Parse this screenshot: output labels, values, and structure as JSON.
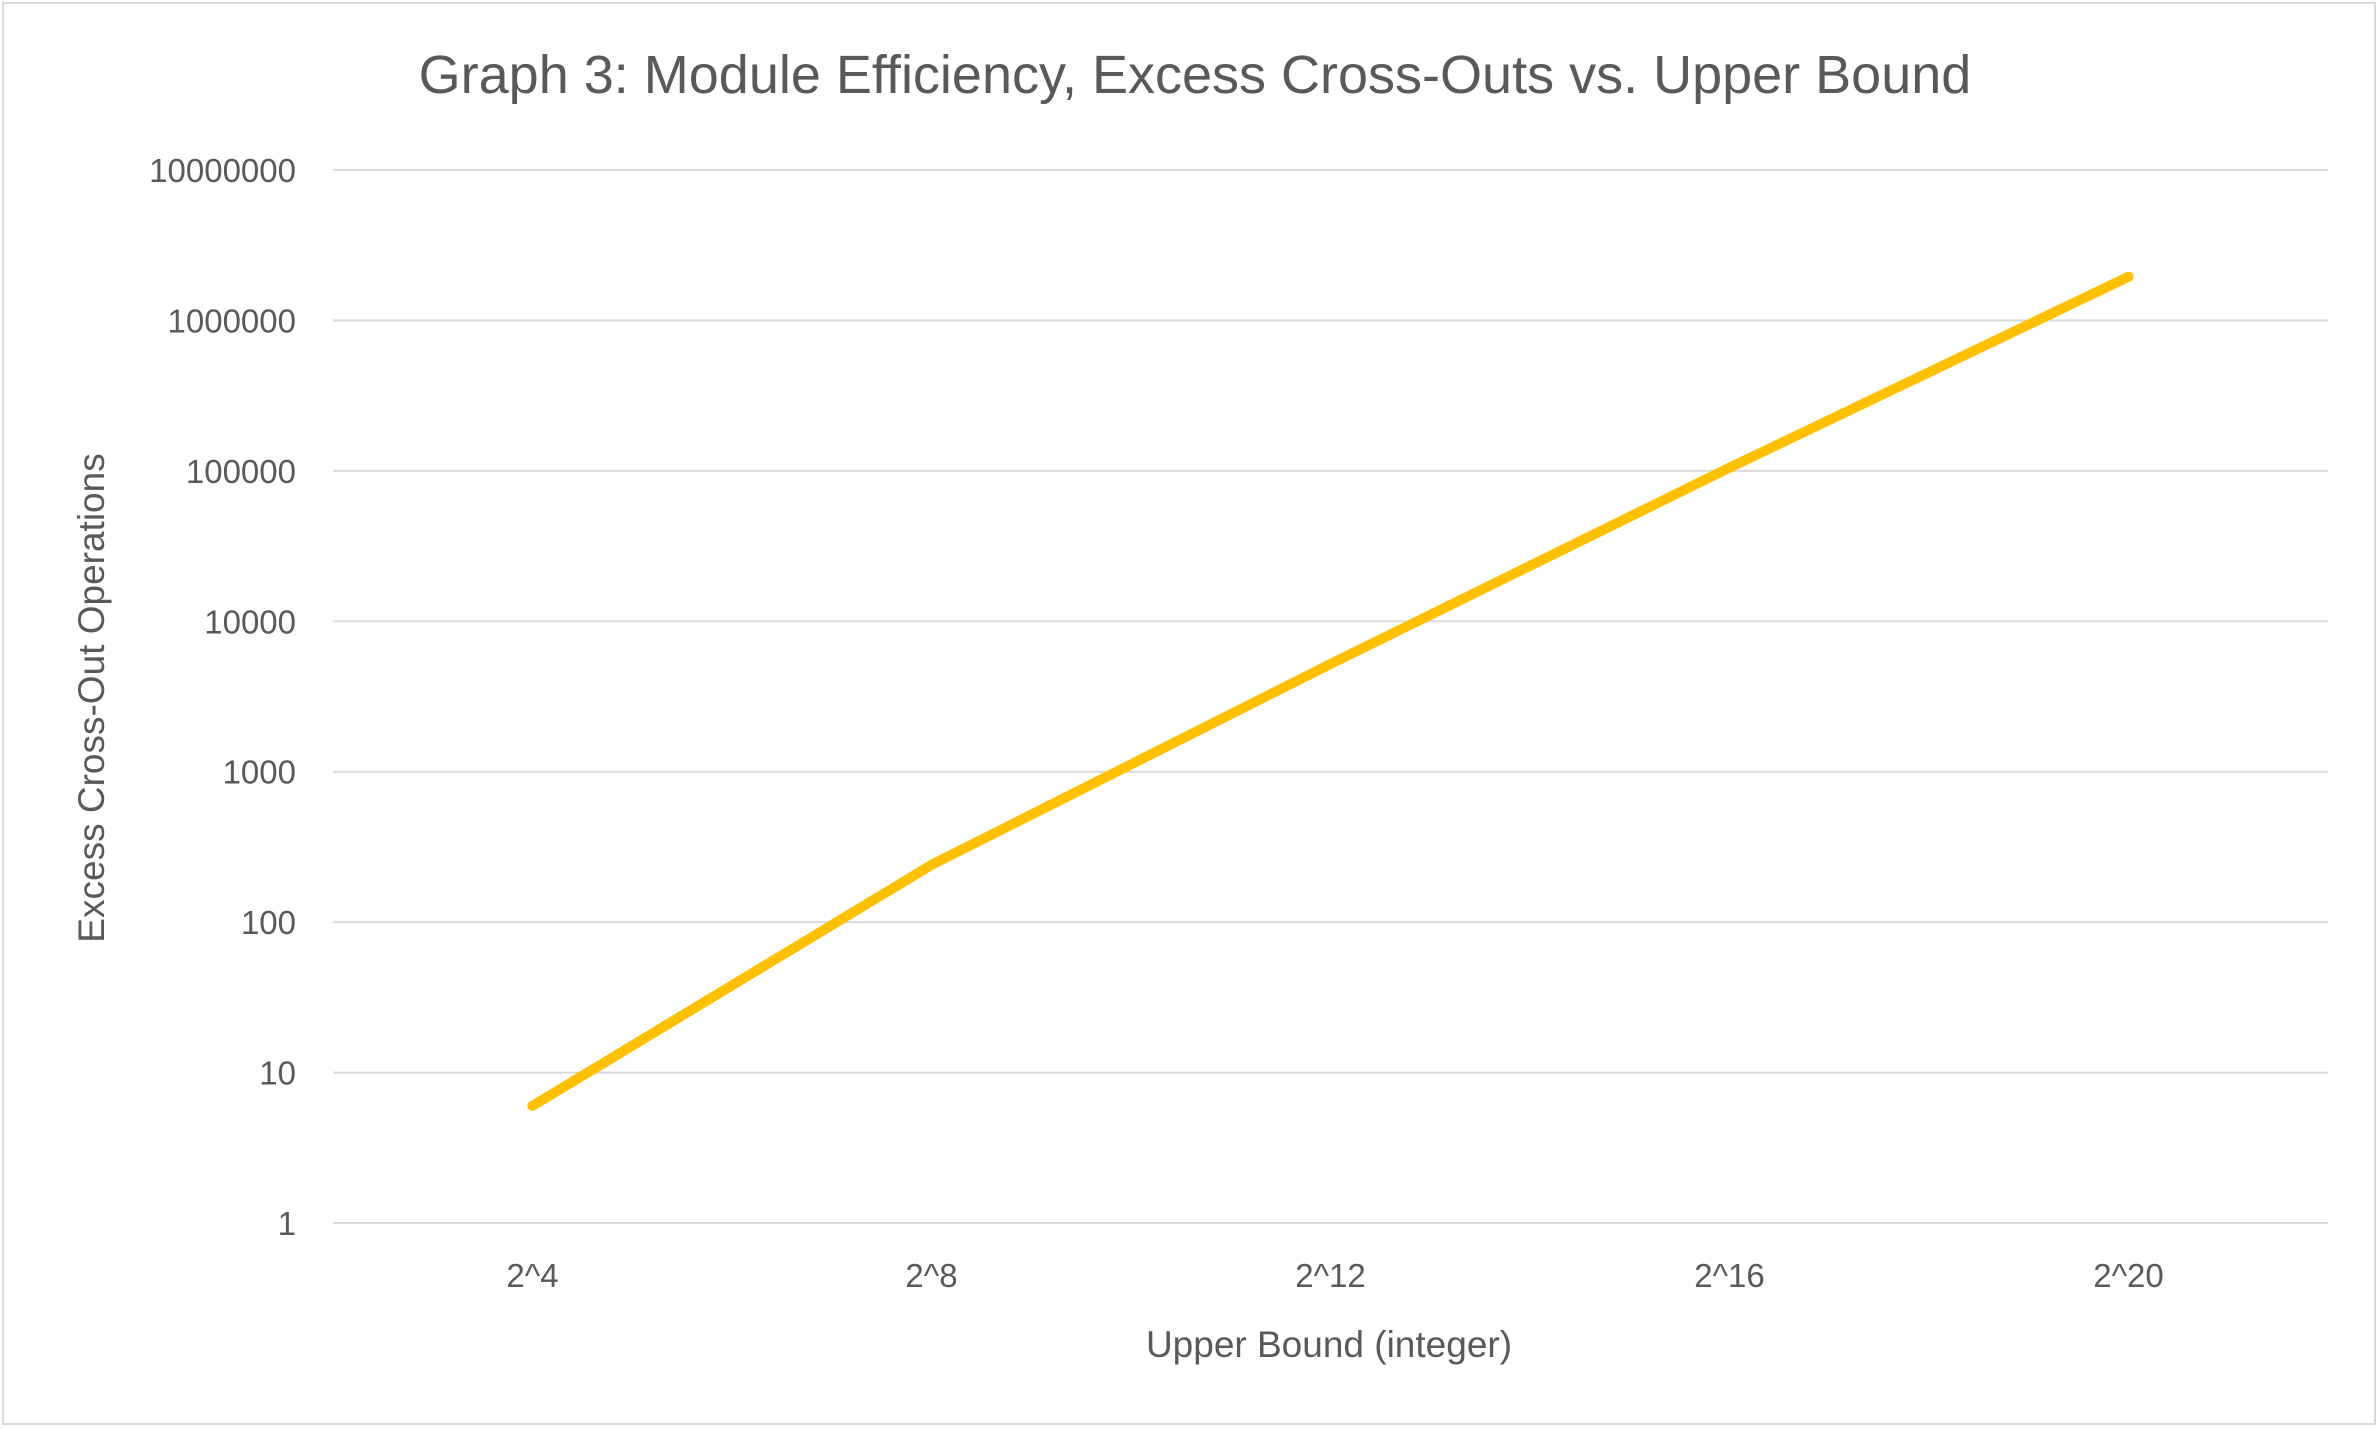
{
  "chart_data": {
    "type": "line",
    "title": "Graph 3: Module Efficiency, Excess Cross-Outs vs. Upper Bound",
    "xlabel": "Upper Bound (integer)",
    "ylabel": "Excess Cross-Out Operations",
    "categories": [
      "2^4",
      "2^8",
      "2^12",
      "2^16",
      "2^20"
    ],
    "y_scale": "log",
    "ylim": [
      1,
      10000000
    ],
    "y_ticks": [
      "1",
      "10",
      "100",
      "1000",
      "10000",
      "100000",
      "1000000",
      "10000000"
    ],
    "grid": true,
    "legend": "none",
    "series": [
      {
        "values": [
          6,
          240,
          5200,
          105000,
          1950000
        ],
        "color": "#FFC000"
      }
    ]
  }
}
